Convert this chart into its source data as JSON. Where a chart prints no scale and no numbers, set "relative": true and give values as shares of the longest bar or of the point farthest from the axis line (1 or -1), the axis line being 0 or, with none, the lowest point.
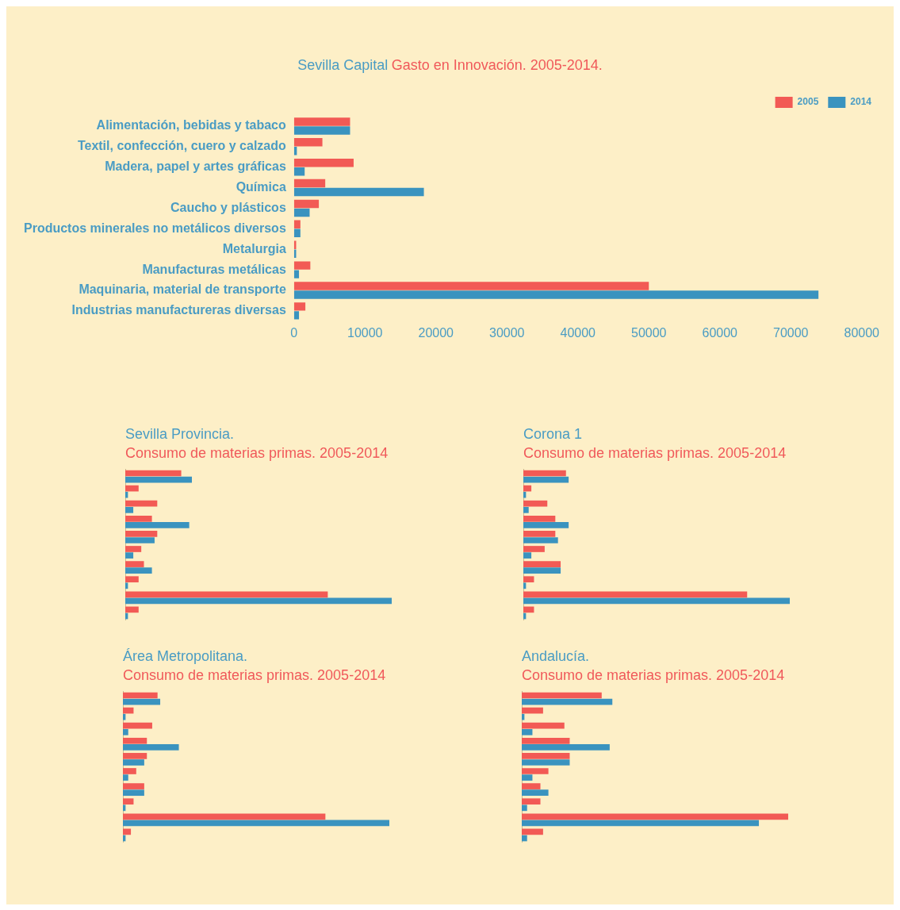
{
  "chart_data": [
    {
      "type": "bar",
      "orientation": "horizontal",
      "title": "Sevilla Capital",
      "subtitle": "Gasto en Innovación. 2005-2014.",
      "categories": [
        "Alimentación, bebidas y tabaco",
        "Textil, confección, cuero y calzado",
        "Madera, papel y artes gráficas",
        "Química",
        "Caucho y plásticos",
        "Productos minerales no metálicos diversos",
        "Metalurgia",
        "Manufacturas metálicas",
        "Maquinaria, material de transporte",
        "Industrias manufactureras diversas"
      ],
      "xlim": [
        0,
        80000
      ],
      "xticks": [
        0,
        10000,
        20000,
        30000,
        40000,
        50000,
        60000,
        70000,
        80000
      ],
      "grid": false,
      "legend": "top right",
      "series": [
        {
          "name": "2005",
          "color": "#f25a55",
          "values": [
            7900,
            4000,
            8400,
            4400,
            3500,
            900,
            300,
            2300,
            50000,
            1600
          ]
        },
        {
          "name": "2014",
          "color": "#3a93bf",
          "values": [
            7900,
            400,
            1500,
            18300,
            2200,
            900,
            300,
            700,
            73900,
            700
          ]
        }
      ]
    },
    {
      "type": "bar",
      "orientation": "horizontal",
      "relative": true,
      "tick_labels": false,
      "title": "Sevilla Provincia.",
      "subtitle": "Consumo de materias primas. 2005-2014",
      "categories": [
        null,
        null,
        null,
        null,
        null,
        null,
        null,
        null,
        null,
        null
      ],
      "grid": false,
      "series": [
        {
          "color": "#f25a55",
          "values": [
            0.21,
            0.05,
            0.12,
            0.1,
            0.12,
            0.06,
            0.07,
            0.05,
            0.76,
            0.05
          ]
        },
        {
          "color": "#3a93bf",
          "values": [
            0.25,
            0.01,
            0.03,
            0.24,
            0.11,
            0.03,
            0.1,
            0.01,
            1,
            0.01
          ]
        }
      ]
    },
    {
      "type": "bar",
      "orientation": "horizontal",
      "relative": true,
      "tick_labels": false,
      "title": "Corona 1",
      "subtitle": "Consumo de materias primas. 2005-2014",
      "categories": [
        null,
        null,
        null,
        null,
        null,
        null,
        null,
        null,
        null,
        null
      ],
      "grid": false,
      "series": [
        {
          "color": "#f25a55",
          "values": [
            0.16,
            0.03,
            0.09,
            0.12,
            0.12,
            0.08,
            0.14,
            0.04,
            0.84,
            0.04
          ]
        },
        {
          "color": "#3a93bf",
          "values": [
            0.17,
            0.01,
            0.02,
            0.17,
            0.13,
            0.03,
            0.14,
            0.01,
            1,
            0.01
          ]
        }
      ]
    },
    {
      "type": "bar",
      "orientation": "horizontal",
      "relative": true,
      "tick_labels": false,
      "title": "Área Metropolitana.",
      "subtitle": "Consumo de materias primas. 2005-2014",
      "categories": [
        null,
        null,
        null,
        null,
        null,
        null,
        null,
        null,
        null,
        null
      ],
      "grid": false,
      "series": [
        {
          "color": "#f25a55",
          "values": [
            0.13,
            0.04,
            0.11,
            0.09,
            0.09,
            0.05,
            0.08,
            0.04,
            0.76,
            0.03
          ]
        },
        {
          "color": "#3a93bf",
          "values": [
            0.14,
            0.01,
            0.02,
            0.21,
            0.08,
            0.02,
            0.08,
            0.01,
            1,
            0.01
          ]
        }
      ]
    },
    {
      "type": "bar",
      "orientation": "horizontal",
      "relative": true,
      "tick_labels": false,
      "title": "Andalucía.",
      "subtitle": "Consumo de materias primas. 2005-2014",
      "categories": [
        null,
        null,
        null,
        null,
        null,
        null,
        null,
        null,
        null,
        null
      ],
      "grid": false,
      "series": [
        {
          "color": "#f25a55",
          "values": [
            0.3,
            0.08,
            0.16,
            0.18,
            0.18,
            0.1,
            0.07,
            0.07,
            1,
            0.08
          ]
        },
        {
          "color": "#3a93bf",
          "values": [
            0.34,
            0.01,
            0.04,
            0.33,
            0.18,
            0.04,
            0.1,
            0.02,
            0.89,
            0.02
          ]
        }
      ]
    }
  ]
}
